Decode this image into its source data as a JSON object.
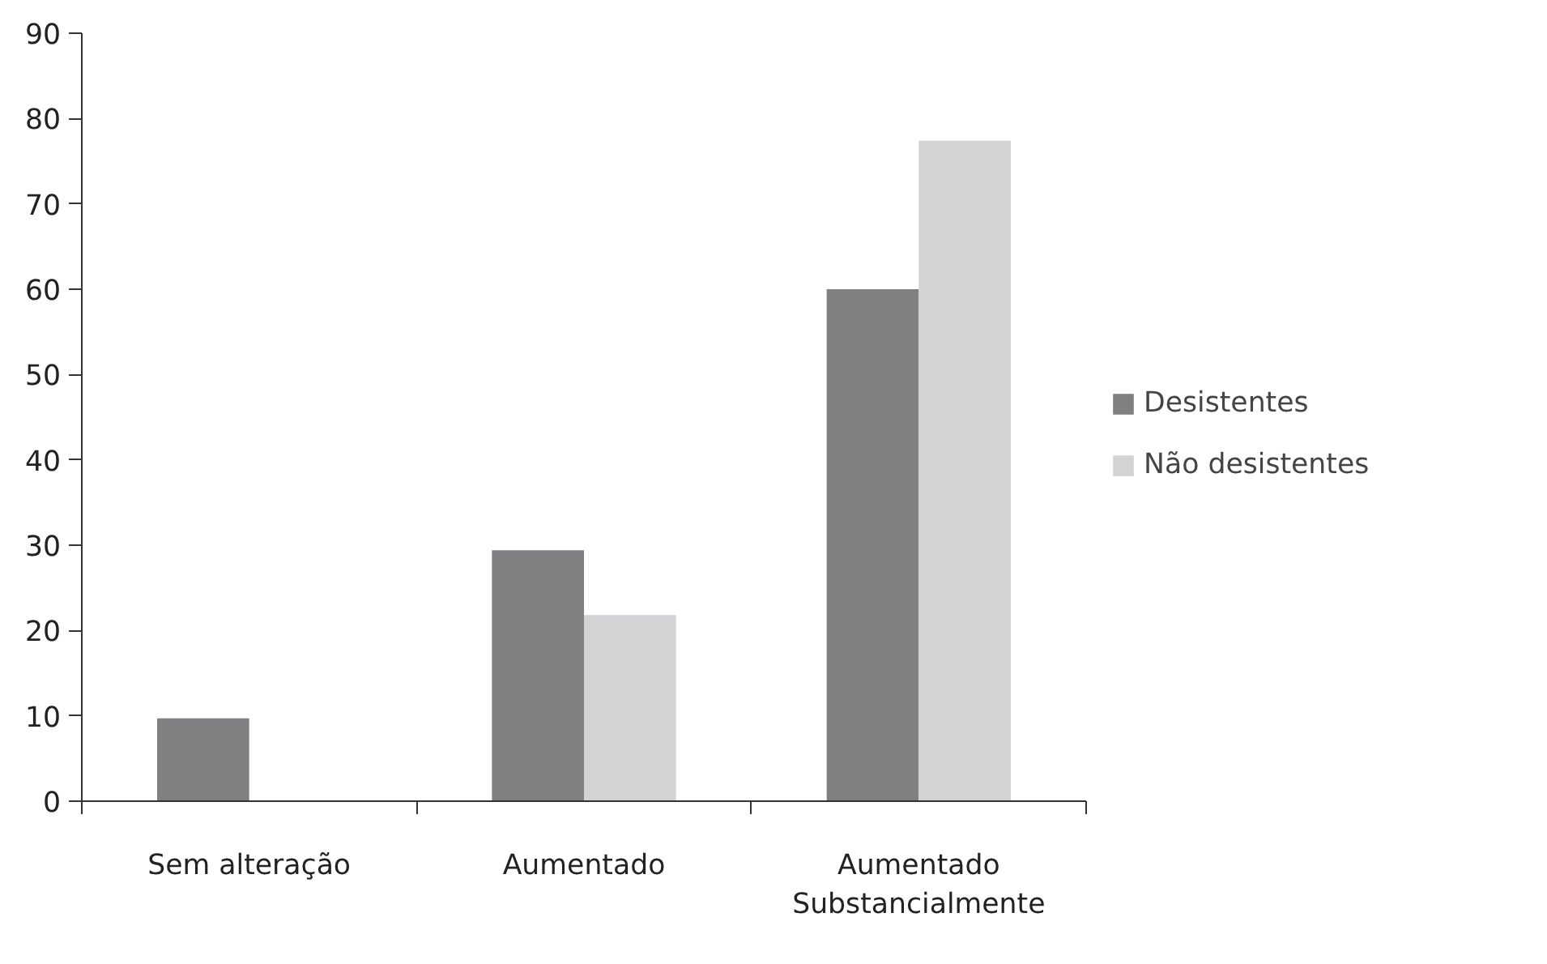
{
  "chart_data": {
    "type": "bar",
    "categories": [
      "Sem alteração",
      "Aumentado",
      "Aumentado Substancialmente"
    ],
    "series": [
      {
        "name": "Desistentes",
        "color": "#808083",
        "values": [
          9.7,
          29.4,
          60.0
        ]
      },
      {
        "name": "Não desistentes",
        "color": "#d3d3d5",
        "values": [
          0,
          21.8,
          77.4
        ]
      }
    ],
    "ylim": [
      0,
      90
    ],
    "yticks": [
      0,
      10,
      20,
      30,
      40,
      50,
      60,
      70,
      80,
      90
    ],
    "grid": false,
    "legend": "right"
  }
}
